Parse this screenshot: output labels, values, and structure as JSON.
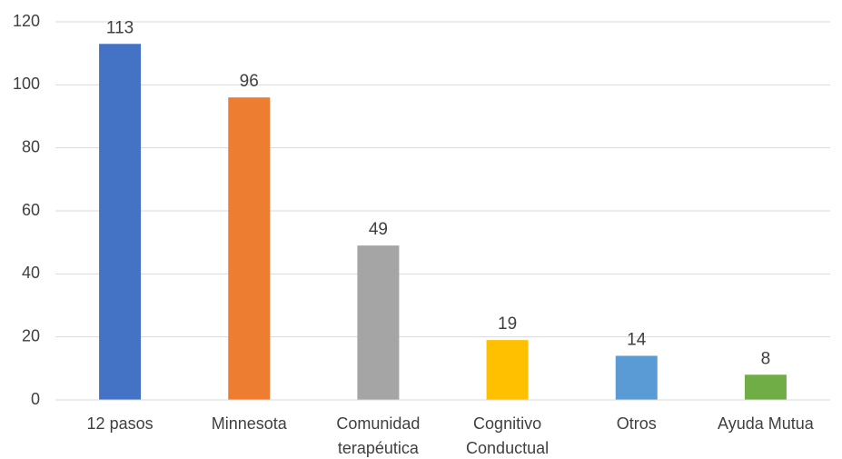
{
  "chart_data": {
    "type": "bar",
    "categories": [
      "12 pasos",
      "Minnesota",
      "Comunidad terapéutica",
      "Cognitivo Conductual",
      "Otros",
      "Ayuda Mutua"
    ],
    "values": [
      113,
      96,
      49,
      19,
      14,
      8
    ],
    "colors": [
      "#4472c4",
      "#ed7d31",
      "#a5a5a5",
      "#ffc000",
      "#5b9bd5",
      "#70ad47"
    ],
    "ylim": [
      0,
      120
    ],
    "yticks": [
      0,
      20,
      40,
      60,
      80,
      100,
      120
    ],
    "grid": true
  }
}
